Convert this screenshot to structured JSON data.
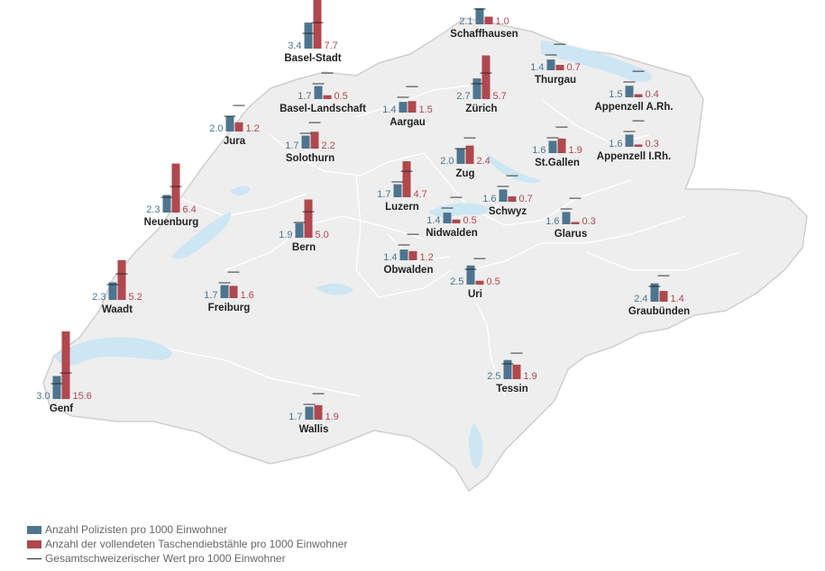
{
  "colors": {
    "police": "#4e7590",
    "pickpocket": "#b0484e",
    "reference": "#222222",
    "land": "#eeeeee",
    "water": "#cde6f3"
  },
  "legend": {
    "police": "Anzahl Polizisten pro 1000 Einwohner",
    "pickpocket": "Anzahl der vollendeten Taschendiebstähle pro 1000 Einwohner",
    "reference": "Gesamtschweizerischer Wert pro 1000 Einwohner"
  },
  "chart_data": {
    "type": "bar",
    "unit": "pro 1000 Einwohner",
    "reference": {
      "police": 2.0,
      "pickpocket": 3.4
    },
    "cantons": [
      {
        "name": "Basel-Stadt",
        "police": "3.4",
        "pickpocket": "7.7"
      },
      {
        "name": "Schaffhausen",
        "police": "2.1",
        "pickpocket": "1.0"
      },
      {
        "name": "Thurgau",
        "police": "1.4",
        "pickpocket": "0.7"
      },
      {
        "name": "Basel-Landschaft",
        "police": "1.7",
        "pickpocket": "0.5"
      },
      {
        "name": "Aargau",
        "police": "1.4",
        "pickpocket": "1.5"
      },
      {
        "name": "Zürich",
        "police": "2.7",
        "pickpocket": "5.7"
      },
      {
        "name": "Appenzell A.Rh.",
        "police": "1.5",
        "pickpocket": "0.4"
      },
      {
        "name": "Jura",
        "police": "2.0",
        "pickpocket": "1.2"
      },
      {
        "name": "Solothurn",
        "police": "1.7",
        "pickpocket": "2.2"
      },
      {
        "name": "Zug",
        "police": "2.0",
        "pickpocket": "2.4"
      },
      {
        "name": "St.Gallen",
        "police": "1.6",
        "pickpocket": "1.9"
      },
      {
        "name": "Appenzell I.Rh.",
        "police": "1.6",
        "pickpocket": "0.3"
      },
      {
        "name": "Neuenburg",
        "police": "2.3",
        "pickpocket": "6.4"
      },
      {
        "name": "Luzern",
        "police": "1.7",
        "pickpocket": "4.7"
      },
      {
        "name": "Schwyz",
        "police": "1.6",
        "pickpocket": "0.7"
      },
      {
        "name": "Nidwalden",
        "police": "1.4",
        "pickpocket": "0.5"
      },
      {
        "name": "Glarus",
        "police": "1.6",
        "pickpocket": "0.3"
      },
      {
        "name": "Bern",
        "police": "1.9",
        "pickpocket": "5.0"
      },
      {
        "name": "Obwalden",
        "police": "1.4",
        "pickpocket": "1.2"
      },
      {
        "name": "Uri",
        "police": "2.5",
        "pickpocket": "0.5"
      },
      {
        "name": "Waadt",
        "police": "2.3",
        "pickpocket": "5.2"
      },
      {
        "name": "Freiburg",
        "police": "1.7",
        "pickpocket": "1.6"
      },
      {
        "name": "Graubünden",
        "police": "2.4",
        "pickpocket": "1.4"
      },
      {
        "name": "Genf",
        "police": "3.0",
        "pickpocket": "15.6"
      },
      {
        "name": "Tessin",
        "police": "2.5",
        "pickpocket": "1.9"
      },
      {
        "name": "Wallis",
        "police": "1.7",
        "pickpocket": "1.9"
      }
    ]
  }
}
